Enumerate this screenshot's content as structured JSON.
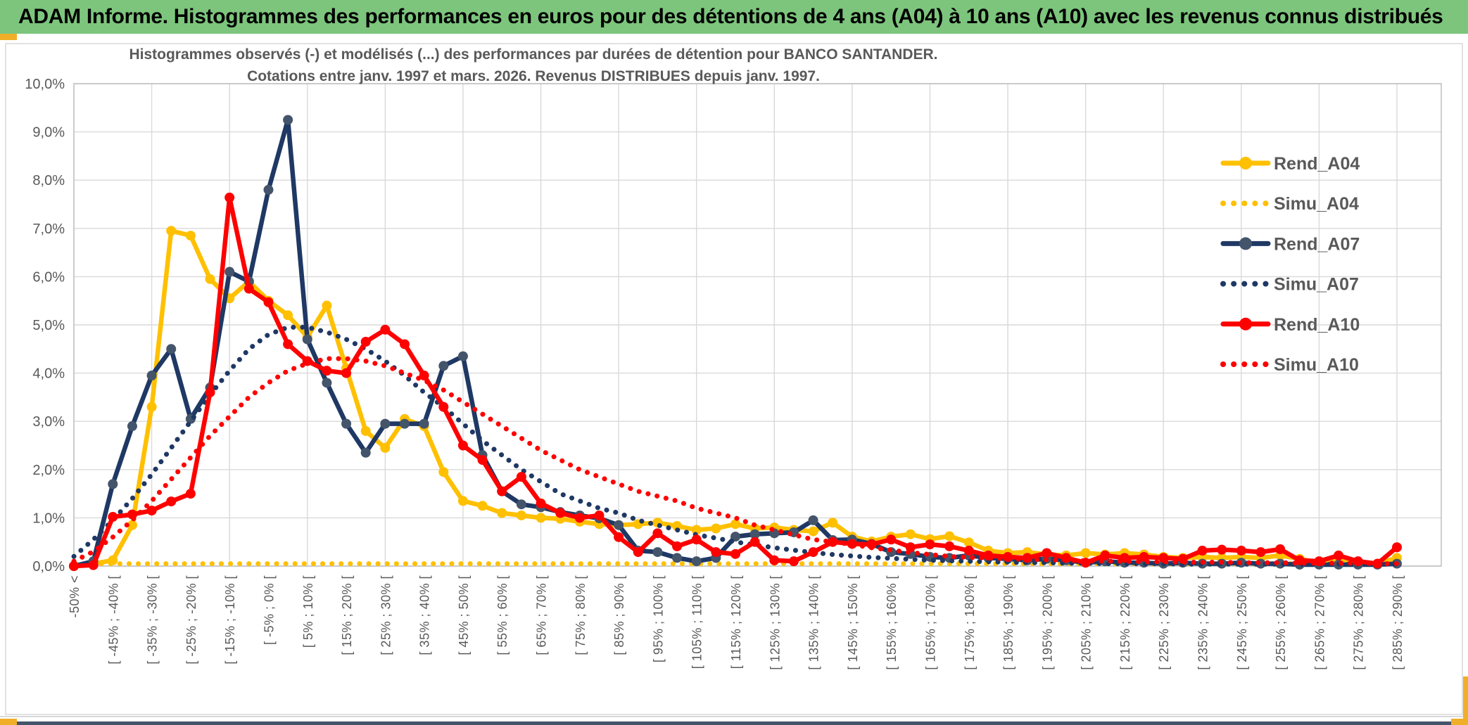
{
  "banner": {
    "title": "ADAM Informe. Histogrammes des performances en euros pour des détentions de 4 ans (A04) à 10 ans (A10) avec les revenus connus distribués"
  },
  "accent_color": "#F1AE29",
  "banner_color": "#7DC57D",
  "bottom_bar_color": "#44546A",
  "chart_data": {
    "type": "line",
    "title": "Histogrammes observés (-) et modélisés (...) des performances par durées de détention pour BANCO SANTANDER.",
    "subtitle": "Cotations entre janv. 1997 et mars. 2026. Revenus DISTRIBUES depuis janv. 1997.",
    "ylabel": "",
    "xlabel": "",
    "ylim_percent": [
      0,
      10
    ],
    "grid": "on",
    "legend_position": "right-inside",
    "bin_width_pct": 5,
    "labels_every_n_bins": 2,
    "y_ticks": [
      "0,0%",
      "1,0%",
      "2,0%",
      "3,0%",
      "4,0%",
      "5,0%",
      "6,0%",
      "7,0%",
      "8,0%",
      "9,0%",
      "10,0%"
    ],
    "x_labels": [
      "-50% <",
      "[ -45% ; -40% [",
      "[ -35% ; -30% [",
      "[ -25% ; -20% [",
      "[ -15% ; -10% [",
      "[ -5% ; 0% [",
      "[ 5% ; 10% [",
      "[ 15% ; 20% [",
      "[ 25% ; 30% [",
      "[ 35% ; 40% [",
      "[ 45% ; 50% [",
      "[ 55% ; 60% [",
      "[ 65% ; 70% [",
      "[ 75% ; 80% [",
      "[ 85% ; 90% [",
      "[ 95% ; 100% [",
      "[ 105% ; 110% [",
      "[ 115% ; 120% [",
      "[ 125% ; 130% [",
      "[ 135% ; 140% [",
      "[ 145% ; 150% [",
      "[ 155% ; 160% [",
      "[ 165% ; 170% [",
      "[ 175% ; 180% [",
      "[ 185% ; 190% [",
      "[ 195% ; 200% [",
      "[ 205% ; 210% [",
      "[ 215% ; 220% [",
      "[ 225% ; 230% [",
      "[ 235% ; 240% [",
      "[ 245% ; 250% [",
      "[ 255% ; 260% [",
      "[ 265% ; 270% [",
      "[ 275% ; 280% [",
      "[ 285% ; 290% ["
    ],
    "series": [
      {
        "name": "Rend_A04",
        "color": "#FFC000",
        "marker_color": "#FFC000",
        "style": "solid",
        "values": [
          0,
          0.05,
          0.12,
          0.85,
          3.3,
          6.95,
          6.85,
          5.95,
          5.55,
          5.9,
          5.5,
          5.2,
          4.75,
          5.4,
          4.1,
          2.8,
          2.45,
          3.05,
          2.9,
          1.95,
          1.35,
          1.25,
          1.1,
          1.05,
          1.0,
          0.98,
          0.92,
          0.87,
          0.85,
          0.87,
          0.9,
          0.83,
          0.75,
          0.78,
          0.87,
          0.78,
          0.8,
          0.75,
          0.72,
          0.9,
          0.61,
          0.51,
          0.61,
          0.66,
          0.56,
          0.62,
          0.49,
          0.32,
          0.27,
          0.29,
          0.24,
          0.22,
          0.27,
          0.24,
          0.27,
          0.24,
          0.19,
          0.17,
          0.19,
          0.17,
          0.19,
          0.17,
          0.22,
          0.15,
          0.07,
          0.1,
          0.07,
          0.05,
          0.17
        ]
      },
      {
        "name": "Simu_A04",
        "color": "#FFC000",
        "marker_color": "#FFC000",
        "style": "dotted",
        "values": [
          0,
          0.05,
          0.05,
          0.05,
          0.05,
          0.05,
          0.05,
          0.05,
          0.05,
          0.05,
          0.05,
          0.05,
          0.05,
          0.05,
          0.05,
          0.05,
          0.05,
          0.05,
          0.05,
          0.05,
          0.05,
          0.05,
          0.05,
          0.05,
          0.05,
          0.05,
          0.05,
          0.05,
          0.05,
          0.05,
          0.05,
          0.05,
          0.05,
          0.05,
          0.05,
          0.05,
          0.05,
          0.05,
          0.05,
          0.05,
          0.05,
          0.05,
          0.05,
          0.05,
          0.05,
          0.05,
          0.05,
          0.05,
          0.05,
          0.05,
          0.05,
          0.05,
          0.05,
          0.05,
          0.05,
          0.05,
          0.05,
          0.05,
          0.05,
          0.05,
          0.05,
          0.05,
          0.05,
          0.05,
          0.05,
          0.05,
          0.05,
          0.05,
          0.05
        ]
      },
      {
        "name": "Rend_A07",
        "color": "#1F3864",
        "marker_color": "#44546A",
        "style": "solid",
        "values": [
          0,
          0.1,
          1.7,
          2.9,
          3.95,
          4.5,
          3.05,
          3.7,
          6.1,
          5.9,
          7.8,
          9.25,
          4.7,
          3.8,
          2.95,
          2.35,
          2.95,
          2.95,
          2.95,
          4.15,
          4.35,
          2.3,
          1.55,
          1.28,
          1.22,
          1.12,
          1.05,
          0.99,
          0.85,
          0.32,
          0.29,
          0.17,
          0.1,
          0.17,
          0.61,
          0.66,
          0.68,
          0.7,
          0.95,
          0.54,
          0.55,
          0.46,
          0.29,
          0.25,
          0.19,
          0.17,
          0.22,
          0.17,
          0.15,
          0.12,
          0.15,
          0.12,
          0.07,
          0.1,
          0.07,
          0.07,
          0.05,
          0.07,
          0.05,
          0.05,
          0.07,
          0.05,
          0.05,
          0.03,
          0.03,
          0.03,
          0.03,
          0.03,
          0.05
        ]
      },
      {
        "name": "Simu_A07",
        "color": "#1F3864",
        "marker_color": "#1F3864",
        "style": "dotted",
        "values": [
          0.2,
          0.55,
          0.95,
          1.4,
          1.9,
          2.45,
          3.0,
          3.55,
          4.05,
          4.5,
          4.8,
          4.95,
          4.95,
          4.85,
          4.7,
          4.5,
          4.25,
          3.95,
          3.6,
          3.3,
          2.95,
          2.6,
          2.3,
          2.0,
          1.75,
          1.5,
          1.35,
          1.2,
          1.1,
          0.95,
          0.85,
          0.75,
          0.65,
          0.58,
          0.5,
          0.44,
          0.38,
          0.33,
          0.28,
          0.24,
          0.21,
          0.18,
          0.16,
          0.14,
          0.12,
          0.11,
          0.1,
          0.09,
          0.08,
          0.07,
          0.07,
          0.06,
          0.06,
          0.05,
          0.05,
          0.05,
          0.05,
          0.04,
          0.04,
          0.04,
          0.04,
          0.04,
          0.04,
          0.04,
          0.04,
          0.04,
          0.04,
          0.04,
          0.04
        ]
      },
      {
        "name": "Rend_A10",
        "color": "#FF0000",
        "marker_color": "#FF0000",
        "style": "solid",
        "values": [
          0,
          0.02,
          1.02,
          1.07,
          1.15,
          1.34,
          1.5,
          3.6,
          7.64,
          5.75,
          5.47,
          4.6,
          4.25,
          4.05,
          4.0,
          4.65,
          4.9,
          4.6,
          3.95,
          3.3,
          2.5,
          2.2,
          1.55,
          1.85,
          1.3,
          1.1,
          1.0,
          1.05,
          0.6,
          0.29,
          0.68,
          0.41,
          0.55,
          0.29,
          0.25,
          0.5,
          0.12,
          0.1,
          0.29,
          0.5,
          0.46,
          0.45,
          0.55,
          0.39,
          0.45,
          0.41,
          0.32,
          0.22,
          0.19,
          0.17,
          0.27,
          0.17,
          0.07,
          0.22,
          0.17,
          0.19,
          0.17,
          0.15,
          0.32,
          0.34,
          0.32,
          0.29,
          0.35,
          0.12,
          0.1,
          0.22,
          0.1,
          0.05,
          0.39
        ]
      },
      {
        "name": "Simu_A10",
        "color": "#FF0000",
        "marker_color": "#FF0000",
        "style": "dotted",
        "values": [
          0.1,
          0.3,
          0.6,
          0.95,
          1.35,
          1.8,
          2.25,
          2.7,
          3.1,
          3.5,
          3.8,
          4.05,
          4.2,
          4.3,
          4.3,
          4.25,
          4.15,
          4.0,
          3.85,
          3.65,
          3.4,
          3.15,
          2.9,
          2.65,
          2.4,
          2.2,
          2.0,
          1.85,
          1.7,
          1.55,
          1.45,
          1.35,
          1.2,
          1.1,
          1.0,
          0.85,
          0.75,
          0.65,
          0.55,
          0.5,
          0.45,
          0.38,
          0.33,
          0.28,
          0.24,
          0.2,
          0.18,
          0.17,
          0.15,
          0.14,
          0.13,
          0.12,
          0.11,
          0.1,
          0.1,
          0.09,
          0.09,
          0.08,
          0.08,
          0.08,
          0.07,
          0.07,
          0.07,
          0.06,
          0.06,
          0.06,
          0.06,
          0.05,
          0.05
        ]
      }
    ]
  }
}
